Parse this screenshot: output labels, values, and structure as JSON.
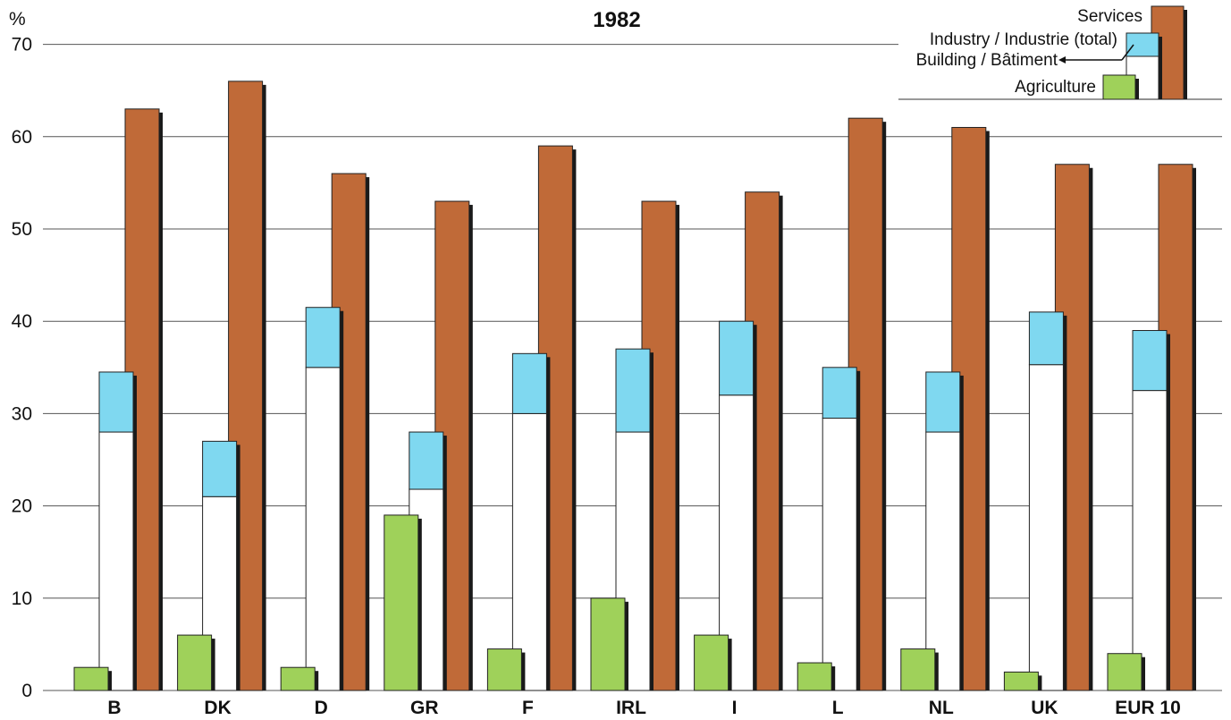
{
  "chart_data": {
    "type": "bar",
    "title": "1982",
    "ylabel": "%",
    "ylim": [
      0,
      70
    ],
    "yticks": [
      0,
      10,
      20,
      30,
      40,
      50,
      60,
      70
    ],
    "grid": true,
    "legend_position": "top-right",
    "categories": [
      "B",
      "DK",
      "D",
      "GR",
      "F",
      "IRL",
      "I",
      "L",
      "NL",
      "UK",
      "EUR 10"
    ],
    "series": [
      {
        "name": "Agriculture",
        "values": [
          2.5,
          6,
          2.5,
          19,
          4.5,
          10,
          6,
          3,
          4.5,
          2,
          4
        ]
      },
      {
        "name": "Building/Bâtiment",
        "values": [
          28,
          21,
          35,
          21.8,
          30,
          28,
          32,
          29.5,
          28,
          35.3,
          32.5
        ]
      },
      {
        "name": "Industry/Industrie (total)",
        "values": [
          34.5,
          27,
          41.5,
          28,
          36.5,
          37,
          40,
          35,
          34.5,
          41,
          39
        ]
      },
      {
        "name": "Services",
        "values": [
          63,
          66,
          56,
          53,
          59,
          53,
          54,
          62,
          61,
          57,
          57
        ]
      }
    ],
    "legend": {
      "services": "Services",
      "industry": "Industry / Industrie (total)",
      "building": "Building / Bâtiment",
      "agriculture": "Agriculture"
    },
    "colors": {
      "agriculture": "#9fd15a",
      "building": "#ffffff",
      "industry": "#7fd8f0",
      "services": "#c06a38",
      "shadow": "#1a1a1a"
    }
  }
}
